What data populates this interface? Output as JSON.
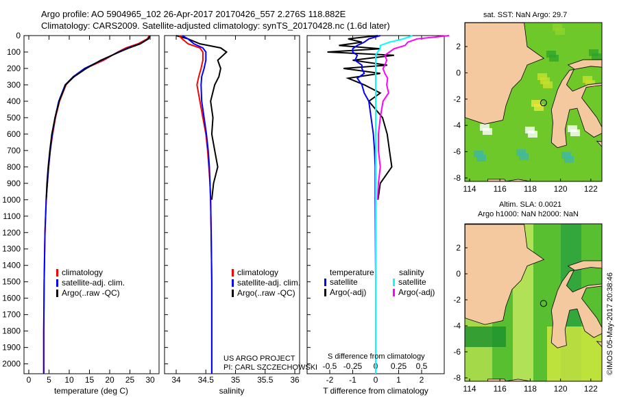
{
  "header": {
    "line1": "Argo profile: AO 5904965_102 26-Apr-2017 20170426_557 2.276S 118.882E",
    "line2": "Climatology: CARS2009. Satellite-adjusted climatology: synTS_20170428.nc (1.6d later)"
  },
  "credits": {
    "project": "US ARGO PROJECT",
    "pi": "PI: CARL SZCZECHOWSKI",
    "imos": "©IMOS 05-May-2017 20:38:46"
  },
  "colors": {
    "clim": "#ff0000",
    "sat": "#0000ff",
    "argo": "#000000",
    "sat_s": "#00ffff",
    "argo_s": "#ff00ff",
    "land": "#f5c9a0",
    "sea": "#4fc018"
  },
  "chart_data": [
    {
      "type": "line",
      "id": "temperature",
      "xlabel": "temperature (deg C)",
      "xlim": [
        -2.5,
        31.5
      ],
      "ylim": [
        2060,
        0
      ],
      "xticks": [
        "0",
        "5",
        "10",
        "15",
        "20",
        "25",
        "30"
      ],
      "yticks": [
        "0",
        "100",
        "200",
        "300",
        "400",
        "500",
        "600",
        "700",
        "800",
        "900",
        "1000",
        "1100",
        "1200",
        "1300",
        "1400",
        "1500",
        "1600",
        "1700",
        "1800",
        "1900",
        "2000"
      ],
      "legend": [
        "climatology",
        "satellite-adj. clim.",
        "Argo(..raw -QC)"
      ],
      "depth": [
        0,
        20,
        50,
        75,
        100,
        150,
        200,
        250,
        300,
        400,
        500,
        600,
        700,
        800,
        900,
        1000,
        1200,
        1500,
        1800,
        2000,
        2060
      ],
      "series": [
        {
          "name": "climatology",
          "values": [
            29.8,
            29.3,
            27,
            24,
            22,
            18.5,
            14,
            11,
            9.2,
            7.6,
            6.6,
            5.9,
            5.3,
            4.9,
            4.6,
            4.3,
            4.0,
            3.8,
            3.7,
            3.7,
            3.7
          ]
        },
        {
          "name": "satellite-adj. clim.",
          "values": [
            30,
            29.6,
            27.5,
            24.5,
            22.2,
            18,
            13.8,
            11,
            9,
            7.4,
            6.5,
            5.8,
            5.3,
            4.9,
            4.6,
            4.3,
            4.0,
            3.8,
            3.7,
            3.7,
            3.7
          ]
        },
        {
          "name": "Argo",
          "values": [
            30,
            29.5,
            27.6,
            24.8,
            22.4,
            17.8,
            14.2,
            11.2,
            9.1,
            7.5,
            6.5,
            5.7,
            5.2,
            4.8,
            4.5,
            4.3,
            null,
            null,
            null,
            null,
            null
          ]
        }
      ]
    },
    {
      "type": "line",
      "id": "salinity",
      "xlabel": "salinity",
      "xlim": [
        33.8,
        36.1
      ],
      "ylim": [
        2060,
        0
      ],
      "xticks": [
        "34",
        "34.5",
        "35",
        "35.5",
        "36"
      ],
      "legend": [
        "climatology",
        "satellite-adj. clim.",
        "Argo(..raw -QC)"
      ],
      "depth": [
        0,
        20,
        50,
        75,
        100,
        150,
        200,
        250,
        300,
        400,
        500,
        600,
        700,
        800,
        900,
        1000,
        1200,
        1500,
        1800,
        2000,
        2060
      ],
      "series": [
        {
          "name": "climatology",
          "values": [
            34.05,
            34.1,
            34.2,
            34.4,
            34.45,
            34.45,
            34.42,
            34.38,
            34.35,
            34.4,
            34.45,
            34.5,
            34.53,
            34.55,
            34.57,
            34.58,
            34.59,
            34.6,
            34.6,
            34.6,
            34.6
          ]
        },
        {
          "name": "satellite-adj. clim.",
          "values": [
            34.1,
            34.2,
            34.3,
            34.45,
            34.5,
            34.5,
            34.47,
            34.43,
            34.42,
            34.43,
            34.47,
            34.51,
            34.54,
            34.56,
            34.57,
            34.58,
            34.59,
            34.6,
            34.6,
            34.6,
            34.6
          ]
        },
        {
          "name": "Argo",
          "values": [
            34.0,
            34.2,
            34.4,
            34.75,
            34.85,
            34.7,
            34.75,
            34.72,
            34.65,
            34.58,
            34.62,
            34.6,
            34.65,
            34.7,
            34.63,
            34.6,
            null,
            null,
            null,
            null,
            null
          ]
        }
      ]
    },
    {
      "type": "line",
      "id": "difference",
      "xlabel": "T difference from climatology",
      "xlabel2": "S difference from climatology",
      "xlim": [
        -3,
        3
      ],
      "ylim": [
        2060,
        0
      ],
      "xticks": [
        "-2",
        "-1",
        "0",
        "1",
        "2"
      ],
      "xticks2": [
        "-0.5",
        "-0.25",
        "0",
        "0.25",
        "0.5"
      ],
      "legend_t": [
        "temperature",
        "satellite",
        "Argo(-adj)"
      ],
      "legend_s": [
        "salinity",
        "satellite",
        "Argo(-adj)"
      ],
      "depth": [
        0,
        20,
        40,
        60,
        80,
        100,
        120,
        150,
        180,
        200,
        230,
        260,
        300,
        350,
        400,
        500,
        600,
        700,
        800,
        900,
        1000,
        1500,
        2060
      ],
      "series": [
        {
          "name": "T satellite",
          "values": [
            0.2,
            -0.3,
            -0.5,
            -0.8,
            -1.0,
            -1.0,
            -0.8,
            -0.9,
            -0.6,
            -0.6,
            -0.5,
            -0.8,
            -0.6,
            -0.5,
            -0.3,
            -0.2,
            -0.1,
            -0.05,
            -0.02,
            -0.02,
            -0.02,
            0,
            0
          ]
        },
        {
          "name": "T Argo",
          "values": [
            0.1,
            -1.2,
            -0.6,
            -1.6,
            0.2,
            -2.1,
            0.8,
            -1.0,
            0.5,
            -1.4,
            0.2,
            -1.2,
            -0.5,
            0.2,
            -0.3,
            0.3,
            0.5,
            0.6,
            0.7,
            0.2,
            0.1,
            null,
            null
          ]
        },
        {
          "name": "S satellite",
          "values": [
            0.4,
            0.3,
            0.15,
            0.05,
            0.05,
            0.02,
            0.0,
            0.0,
            0.0,
            0.0,
            0.0,
            0.0,
            0.0,
            0.0,
            0.0,
            0.0,
            0.0,
            0.0,
            0.0,
            0.0,
            0.0,
            0.0,
            0.0
          ]
        },
        {
          "name": "S Argo",
          "values": [
            0.8,
            0.45,
            0.35,
            0.32,
            0.2,
            0.15,
            0.1,
            0.12,
            0.1,
            0.08,
            0.1,
            0.13,
            0.12,
            0.14,
            0.08,
            0.05,
            0.03,
            0.03,
            0.05,
            0.03,
            0.02,
            null,
            null
          ]
        }
      ]
    },
    {
      "type": "heatmap",
      "id": "sst-map",
      "title": "sat. SST: NaN Argo: 29.7",
      "xticks": [
        "114",
        "116",
        "118",
        "120",
        "122"
      ],
      "yticks": [
        "2",
        "0",
        "-2",
        "-4",
        "-6",
        "-8"
      ],
      "xlim": [
        113.7,
        124
      ],
      "ylim": [
        -8.3,
        3.8
      ]
    },
    {
      "type": "heatmap",
      "id": "sla-map",
      "title": "Altim. SLA: 0.0021",
      "subtitle": "Argo h1000: NaN h2000: NaN",
      "xticks": [
        "114",
        "116",
        "118",
        "120",
        "122"
      ],
      "yticks": [
        "2",
        "0",
        "-2",
        "-4",
        "-6",
        "-8"
      ],
      "xlim": [
        113.7,
        124
      ],
      "ylim": [
        -8.3,
        3.8
      ]
    }
  ]
}
